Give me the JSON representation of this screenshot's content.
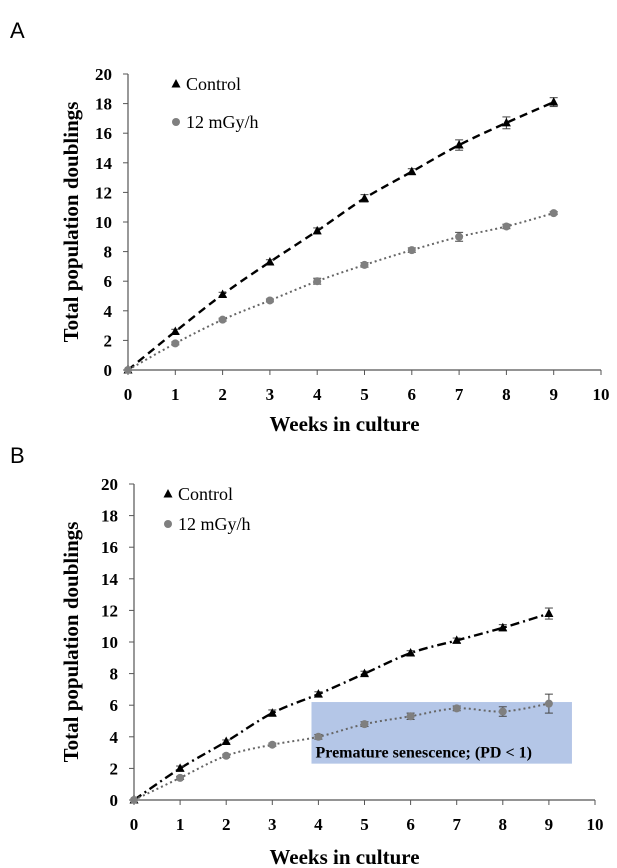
{
  "chart_data": [
    {
      "panel": "A",
      "type": "line",
      "xlabel": "Weeks in culture",
      "ylabel": "Total population doublings",
      "xlim": [
        0,
        10
      ],
      "ylim": [
        0,
        20
      ],
      "xticks": [
        "0",
        "1",
        "2",
        "3",
        "4",
        "5",
        "6",
        "7",
        "8",
        "9",
        "10"
      ],
      "yticks": [
        "0",
        "2",
        "4",
        "6",
        "8",
        "10",
        "12",
        "14",
        "16",
        "18",
        "20"
      ],
      "grid": false,
      "legend_position": "top-left",
      "series": [
        {
          "name": "Control",
          "marker": "triangle",
          "line_style": "dashed",
          "color": "#000000",
          "x": [
            0,
            1,
            2,
            3,
            4,
            5,
            6,
            7,
            8,
            9
          ],
          "y": [
            0,
            2.6,
            5.1,
            7.3,
            9.4,
            11.6,
            13.4,
            15.2,
            16.7,
            18.1
          ],
          "err": [
            0,
            0.15,
            0.15,
            0.15,
            0.2,
            0.25,
            0.2,
            0.35,
            0.4,
            0.3
          ]
        },
        {
          "name": "12 mGy/h",
          "marker": "circle",
          "line_style": "dotted",
          "color": "#7f7f7f",
          "x": [
            0,
            1,
            2,
            3,
            4,
            5,
            6,
            7,
            8,
            9
          ],
          "y": [
            0,
            1.8,
            3.4,
            4.7,
            6.0,
            7.1,
            8.1,
            9.0,
            9.7,
            10.6
          ],
          "err": [
            0,
            0.1,
            0.1,
            0.1,
            0.2,
            0.15,
            0.15,
            0.3,
            0.15,
            0.1
          ]
        }
      ]
    },
    {
      "panel": "B",
      "type": "line",
      "xlabel": "Weeks in culture",
      "ylabel": "Total population doublings",
      "xlim": [
        0,
        10
      ],
      "ylim": [
        0,
        20
      ],
      "xticks": [
        "0",
        "1",
        "2",
        "3",
        "4",
        "5",
        "6",
        "7",
        "8",
        "9",
        "10"
      ],
      "yticks": [
        "0",
        "2",
        "4",
        "6",
        "8",
        "10",
        "12",
        "14",
        "16",
        "18",
        "20"
      ],
      "grid": false,
      "legend_position": "top-left",
      "series": [
        {
          "name": "Control",
          "marker": "triangle",
          "line_style": "dash-dot",
          "color": "#000000",
          "x": [
            0,
            1,
            2,
            3,
            4,
            5,
            6,
            7,
            8,
            9
          ],
          "y": [
            0,
            2.0,
            3.7,
            5.5,
            6.7,
            8.0,
            9.3,
            10.1,
            10.9,
            11.8
          ],
          "err": [
            0,
            0.15,
            0.1,
            0.2,
            0.15,
            0.15,
            0.15,
            0.15,
            0.2,
            0.35
          ]
        },
        {
          "name": "12 mGy/h",
          "marker": "circle",
          "line_style": "dotted",
          "color": "#7f7f7f",
          "x": [
            0,
            1,
            2,
            3,
            4,
            5,
            6,
            7,
            8,
            9
          ],
          "y": [
            0,
            1.4,
            2.8,
            3.5,
            4.0,
            4.8,
            5.3,
            5.8,
            5.6,
            6.1
          ],
          "err": [
            0,
            0.1,
            0.1,
            0.1,
            0.15,
            0.15,
            0.2,
            0.15,
            0.3,
            0.6
          ]
        }
      ],
      "annotation": {
        "text": "Premature senescence; (PD < 1)",
        "x_range": [
          3.85,
          9.5
        ],
        "y_range": [
          2.3,
          6.2
        ],
        "color": "#b4c6e7"
      }
    }
  ]
}
